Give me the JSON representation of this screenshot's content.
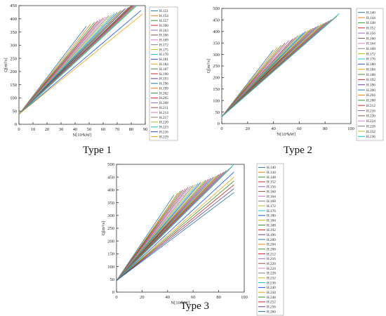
{
  "chart_data": [
    {
      "type": "line",
      "caption": "Type 1",
      "xlabel": "N[10⁴kW]",
      "ylabel": "Q[m³/s]",
      "xlim": [
        0,
        90
      ],
      "ylim": [
        0,
        450
      ],
      "xticks": [
        "0",
        "10",
        "20",
        "30",
        "40",
        "50",
        "60",
        "70",
        "80",
        "90"
      ],
      "yticks": [
        "0",
        "50",
        "100",
        "150",
        "200",
        "250",
        "300",
        "350",
        "400",
        "450"
      ],
      "grid": false,
      "legend_position": "right",
      "series": [
        {
          "name": "H.151",
          "x": [
            0,
            48
          ],
          "y": [
            38,
            372
          ]
        },
        {
          "name": "H.154",
          "x": [
            0,
            51
          ],
          "y": [
            38,
            380
          ]
        },
        {
          "name": "H.157",
          "x": [
            0,
            54
          ],
          "y": [
            38,
            388
          ]
        },
        {
          "name": "H.160",
          "x": [
            0,
            56
          ],
          "y": [
            38,
            392
          ]
        },
        {
          "name": "H.163",
          "x": [
            0,
            58
          ],
          "y": [
            38,
            398
          ]
        },
        {
          "name": "H.166",
          "x": [
            0,
            60
          ],
          "y": [
            38,
            403
          ]
        },
        {
          "name": "H.169",
          "x": [
            0,
            62
          ],
          "y": [
            38,
            408
          ]
        },
        {
          "name": "H.172",
          "x": [
            0,
            64
          ],
          "y": [
            38,
            412
          ]
        },
        {
          "name": "H.175",
          "x": [
            0,
            66
          ],
          "y": [
            38,
            416
          ]
        },
        {
          "name": "H.178",
          "x": [
            0,
            68
          ],
          "y": [
            38,
            420
          ]
        },
        {
          "name": "H.181",
          "x": [
            0,
            70
          ],
          "y": [
            38,
            424
          ]
        },
        {
          "name": "H.184",
          "x": [
            0,
            72
          ],
          "y": [
            38,
            428
          ]
        },
        {
          "name": "H.187",
          "x": [
            0,
            73
          ],
          "y": [
            38,
            432
          ]
        },
        {
          "name": "H.190",
          "x": [
            0,
            75
          ],
          "y": [
            38,
            436
          ]
        },
        {
          "name": "H.193",
          "x": [
            0,
            76
          ],
          "y": [
            38,
            440
          ]
        },
        {
          "name": "H.196",
          "x": [
            0,
            78
          ],
          "y": [
            38,
            443
          ]
        },
        {
          "name": "H.199",
          "x": [
            0,
            79
          ],
          "y": [
            38,
            446
          ]
        },
        {
          "name": "H.202",
          "x": [
            0,
            80
          ],
          "y": [
            38,
            449
          ]
        },
        {
          "name": "H.205",
          "x": [
            0,
            81
          ],
          "y": [
            38,
            452
          ]
        },
        {
          "name": "H.208",
          "x": [
            0,
            82
          ],
          "y": [
            38,
            455
          ]
        },
        {
          "name": "H.211",
          "x": [
            0,
            83
          ],
          "y": [
            38,
            457
          ]
        },
        {
          "name": "H.214",
          "x": [
            0,
            84
          ],
          "y": [
            38,
            459
          ]
        },
        {
          "name": "H.217",
          "x": [
            0,
            85
          ],
          "y": [
            38,
            461
          ]
        },
        {
          "name": "H.220",
          "x": [
            0,
            86
          ],
          "y": [
            38,
            463
          ]
        },
        {
          "name": "H.223",
          "x": [
            0,
            87
          ],
          "y": [
            38,
            465
          ]
        },
        {
          "name": "H.226",
          "x": [
            0,
            87
          ],
          "y": [
            38,
            432
          ]
        },
        {
          "name": "H.229",
          "x": [
            0,
            88
          ],
          "y": [
            38,
            418
          ]
        }
      ]
    },
    {
      "type": "line",
      "caption": "Type 2",
      "xlabel": "N[10⁴kW]",
      "ylabel": "Q[m³/s]",
      "xlim": [
        0,
        100
      ],
      "ylim": [
        0,
        500
      ],
      "xticks": [
        "0",
        "20",
        "40",
        "60",
        "80",
        "100"
      ],
      "yticks": [
        "0",
        "50",
        "100",
        "150",
        "200",
        "250",
        "300",
        "350",
        "400",
        "450",
        "500"
      ],
      "grid": false,
      "legend_position": "right",
      "series": [
        {
          "name": "H.140",
          "x": [
            0,
            40
          ],
          "y": [
            30,
            320
          ]
        },
        {
          "name": "H.144",
          "x": [
            0,
            43
          ],
          "y": [
            30,
            330
          ]
        },
        {
          "name": "H.148",
          "x": [
            0,
            46
          ],
          "y": [
            30,
            340
          ]
        },
        {
          "name": "H.152",
          "x": [
            0,
            49
          ],
          "y": [
            30,
            350
          ]
        },
        {
          "name": "H.156",
          "x": [
            0,
            52
          ],
          "y": [
            30,
            360
          ]
        },
        {
          "name": "H.160",
          "x": [
            0,
            55
          ],
          "y": [
            30,
            368
          ]
        },
        {
          "name": "H.164",
          "x": [
            0,
            57
          ],
          "y": [
            30,
            375
          ]
        },
        {
          "name": "H.168",
          "x": [
            0,
            59
          ],
          "y": [
            30,
            382
          ]
        },
        {
          "name": "H.172",
          "x": [
            0,
            61
          ],
          "y": [
            30,
            388
          ]
        },
        {
          "name": "H.176",
          "x": [
            0,
            63
          ],
          "y": [
            30,
            394
          ]
        },
        {
          "name": "H.180",
          "x": [
            0,
            65
          ],
          "y": [
            30,
            400
          ]
        },
        {
          "name": "H.184",
          "x": [
            0,
            67
          ],
          "y": [
            30,
            405
          ]
        },
        {
          "name": "H.188",
          "x": [
            0,
            69
          ],
          "y": [
            30,
            410
          ]
        },
        {
          "name": "H.192",
          "x": [
            0,
            71
          ],
          "y": [
            30,
            415
          ]
        },
        {
          "name": "H.196",
          "x": [
            0,
            73
          ],
          "y": [
            30,
            420
          ]
        },
        {
          "name": "H.200",
          "x": [
            0,
            75
          ],
          "y": [
            30,
            425
          ]
        },
        {
          "name": "H.204",
          "x": [
            0,
            77
          ],
          "y": [
            30,
            430
          ]
        },
        {
          "name": "H.208",
          "x": [
            0,
            79
          ],
          "y": [
            30,
            435
          ]
        },
        {
          "name": "H.212",
          "x": [
            0,
            81
          ],
          "y": [
            30,
            440
          ]
        },
        {
          "name": "H.216",
          "x": [
            0,
            83
          ],
          "y": [
            30,
            446
          ]
        },
        {
          "name": "H.220",
          "x": [
            0,
            85
          ],
          "y": [
            30,
            452
          ]
        },
        {
          "name": "H.224",
          "x": [
            0,
            87
          ],
          "y": [
            30,
            458
          ]
        },
        {
          "name": "H.228",
          "x": [
            0,
            89
          ],
          "y": [
            30,
            465
          ]
        },
        {
          "name": "H.232",
          "x": [
            0,
            90
          ],
          "y": [
            30,
            472
          ]
        },
        {
          "name": "H.236",
          "x": [
            0,
            91
          ],
          "y": [
            30,
            478
          ]
        }
      ]
    },
    {
      "type": "line",
      "caption": "Type 3",
      "xlabel": "N[10⁴kW]",
      "ylabel": "Q[m³/s]",
      "xlim": [
        0,
        100
      ],
      "ylim": [
        0,
        500
      ],
      "xticks": [
        "0",
        "20",
        "40",
        "60",
        "80",
        "100"
      ],
      "yticks": [
        "0",
        "50",
        "100",
        "150",
        "200",
        "250",
        "300",
        "350",
        "400",
        "450",
        "500"
      ],
      "grid": false,
      "legend_position": "right",
      "series": [
        {
          "name": "H.140",
          "x": [
            0,
            45
          ],
          "y": [
            45,
            380
          ]
        },
        {
          "name": "H.144",
          "x": [
            0,
            48
          ],
          "y": [
            45,
            388
          ]
        },
        {
          "name": "H.148",
          "x": [
            0,
            50
          ],
          "y": [
            45,
            395
          ]
        },
        {
          "name": "H.152",
          "x": [
            0,
            52
          ],
          "y": [
            45,
            400
          ]
        },
        {
          "name": "H.156",
          "x": [
            0,
            54
          ],
          "y": [
            45,
            405
          ]
        },
        {
          "name": "H.160",
          "x": [
            0,
            56
          ],
          "y": [
            45,
            410
          ]
        },
        {
          "name": "H.164",
          "x": [
            0,
            58
          ],
          "y": [
            45,
            414
          ]
        },
        {
          "name": "H.168",
          "x": [
            0,
            60
          ],
          "y": [
            45,
            418
          ]
        },
        {
          "name": "H.172",
          "x": [
            0,
            62
          ],
          "y": [
            45,
            422
          ]
        },
        {
          "name": "H.176",
          "x": [
            0,
            64
          ],
          "y": [
            45,
            426
          ]
        },
        {
          "name": "H.180",
          "x": [
            0,
            66
          ],
          "y": [
            45,
            430
          ]
        },
        {
          "name": "H.184",
          "x": [
            0,
            68
          ],
          "y": [
            45,
            434
          ]
        },
        {
          "name": "H.188",
          "x": [
            0,
            70
          ],
          "y": [
            45,
            438
          ]
        },
        {
          "name": "H.192",
          "x": [
            0,
            72
          ],
          "y": [
            45,
            442
          ]
        },
        {
          "name": "H.196",
          "x": [
            0,
            74
          ],
          "y": [
            45,
            446
          ]
        },
        {
          "name": "H.200",
          "x": [
            0,
            76
          ],
          "y": [
            45,
            450
          ]
        },
        {
          "name": "H.204",
          "x": [
            0,
            78
          ],
          "y": [
            45,
            455
          ]
        },
        {
          "name": "H.208",
          "x": [
            0,
            80
          ],
          "y": [
            45,
            460
          ]
        },
        {
          "name": "H.212",
          "x": [
            0,
            82
          ],
          "y": [
            45,
            465
          ]
        },
        {
          "name": "H.216",
          "x": [
            0,
            84
          ],
          "y": [
            45,
            470
          ]
        },
        {
          "name": "H.220",
          "x": [
            0,
            86
          ],
          "y": [
            45,
            476
          ]
        },
        {
          "name": "H.224",
          "x": [
            0,
            88
          ],
          "y": [
            45,
            482
          ]
        },
        {
          "name": "H.228",
          "x": [
            0,
            90
          ],
          "y": [
            45,
            488
          ]
        },
        {
          "name": "H.232",
          "x": [
            0,
            91
          ],
          "y": [
            45,
            494
          ]
        },
        {
          "name": "H.236",
          "x": [
            0,
            92
          ],
          "y": [
            45,
            500
          ]
        },
        {
          "name": "H.240",
          "x": [
            0,
            92
          ],
          "y": [
            45,
            470
          ]
        },
        {
          "name": "H.244",
          "x": [
            0,
            92
          ],
          "y": [
            45,
            450
          ]
        },
        {
          "name": "H.248",
          "x": [
            0,
            92
          ],
          "y": [
            45,
            435
          ]
        },
        {
          "name": "H.252",
          "x": [
            0,
            92
          ],
          "y": [
            45,
            420
          ]
        },
        {
          "name": "H.256",
          "x": [
            0,
            92
          ],
          "y": [
            45,
            405
          ]
        },
        {
          "name": "H.260",
          "x": [
            0,
            92
          ],
          "y": [
            45,
            390
          ]
        }
      ]
    }
  ],
  "palette": [
    "#1f77b4",
    "#ff7f0e",
    "#2ca02c",
    "#d62728",
    "#9467bd",
    "#8c564b",
    "#e377c2",
    "#7f7f7f",
    "#bcbd22",
    "#17becf",
    "#1a55e0",
    "#f0a30a",
    "#3c8d2f",
    "#c4271d",
    "#6a3d9a"
  ]
}
